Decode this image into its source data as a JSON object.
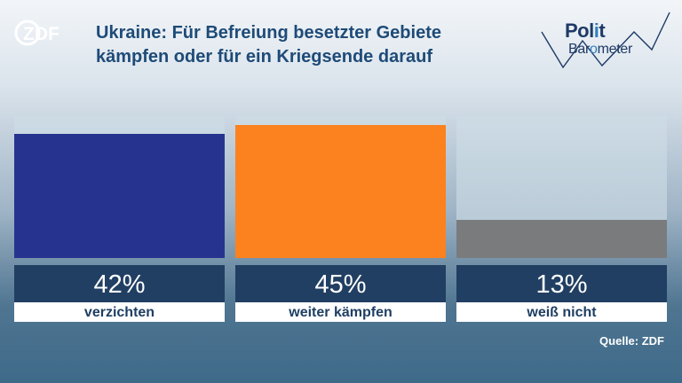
{
  "brand": {
    "logo_text": "ZDF"
  },
  "title_line1": "Ukraine: Für Befreiung besetzter Gebiete",
  "title_line2": "kämpfen oder für ein Kriegsende darauf",
  "polit_logo": {
    "line1_a": "Pol",
    "line1_b": "i",
    "line1_c": "t",
    "line2_a": "Bar",
    "line2_b": "o",
    "line2_c": "meter"
  },
  "colors": {
    "verzichten": "#26348f",
    "weiter_kaempfen": "#fb821e",
    "weiss_nicht": "#7a7b7d",
    "label_bg": "#213f62"
  },
  "source": "Quelle: ZDF",
  "chart_data": {
    "type": "bar",
    "title": "Ukraine: Für Befreiung besetzter Gebiete kämpfen oder für ein Kriegsende darauf",
    "categories": [
      "verzichten",
      "weiter kämpfen",
      "weiß nicht"
    ],
    "values": [
      42,
      45,
      13
    ],
    "value_labels": [
      "42%",
      "45%",
      "13%"
    ],
    "colors": [
      "#26348f",
      "#fb821e",
      "#7a7b7d"
    ],
    "ylim": [
      0,
      48
    ],
    "unit": "%"
  }
}
